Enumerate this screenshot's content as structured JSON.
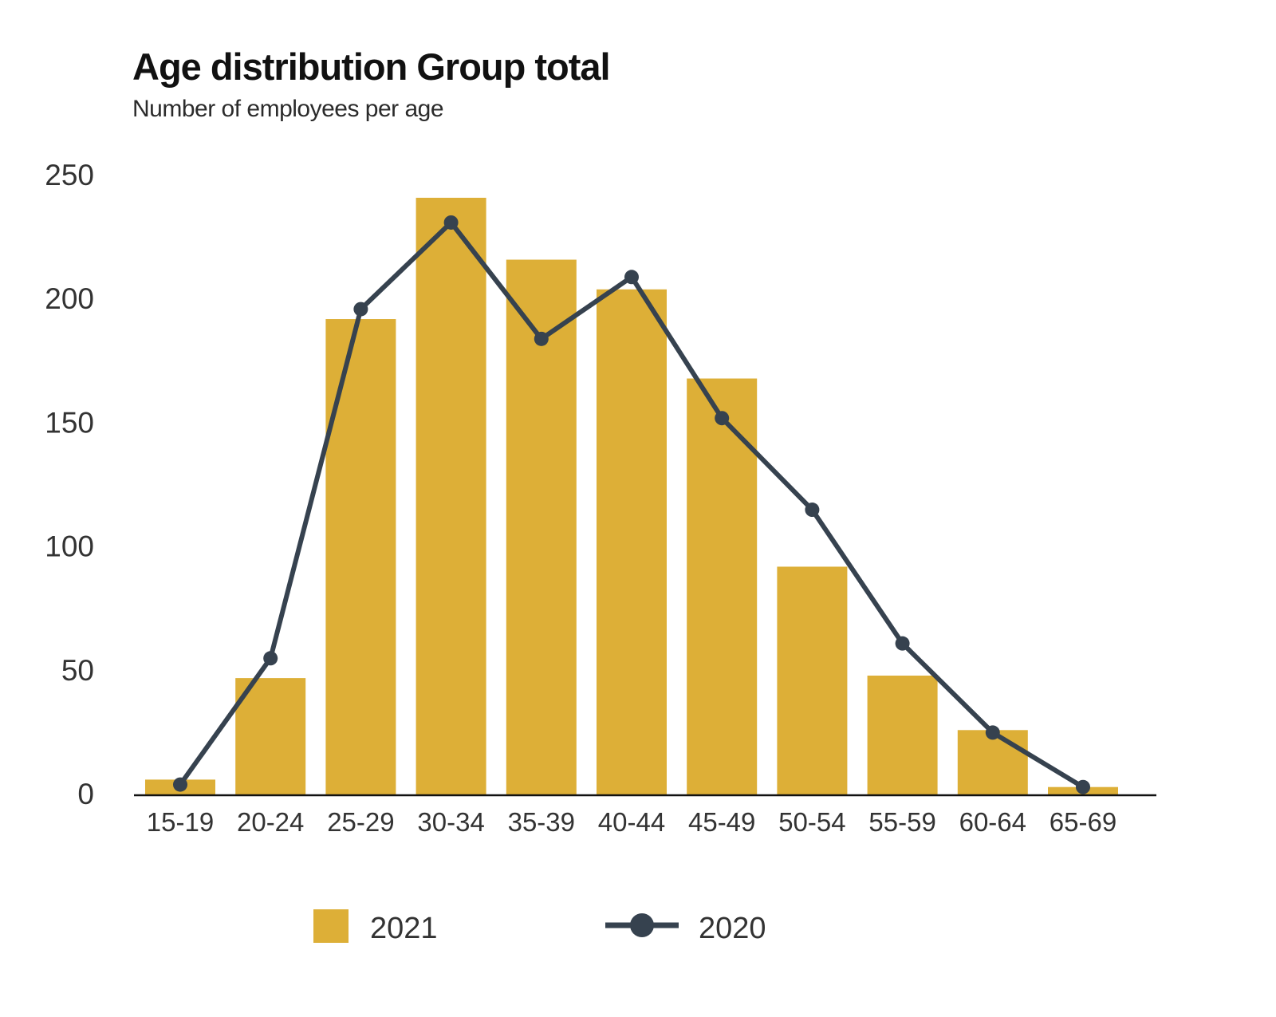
{
  "chart_data": {
    "type": "bar",
    "title": "Age distribution Group total",
    "subtitle": "Number of employees per age",
    "xlabel": "",
    "ylabel": "",
    "categories": [
      "15-19",
      "20-24",
      "25-29",
      "30-34",
      "35-39",
      "40-44",
      "45-49",
      "50-54",
      "55-59",
      "60-64",
      "65-69"
    ],
    "ylim": [
      0,
      250
    ],
    "yticks": [
      "0",
      "50",
      "100",
      "150",
      "200",
      "250"
    ],
    "grid": false,
    "legend_position": "bottom",
    "series": [
      {
        "name": "2021",
        "type": "bar",
        "color": "#DDAF37",
        "values": [
          6,
          47,
          192,
          241,
          216,
          204,
          168,
          92,
          48,
          26,
          3
        ]
      },
      {
        "name": "2020",
        "type": "line",
        "color": "#36424F",
        "values": [
          4,
          55,
          196,
          231,
          184,
          209,
          152,
          115,
          61,
          25,
          3
        ]
      }
    ]
  }
}
